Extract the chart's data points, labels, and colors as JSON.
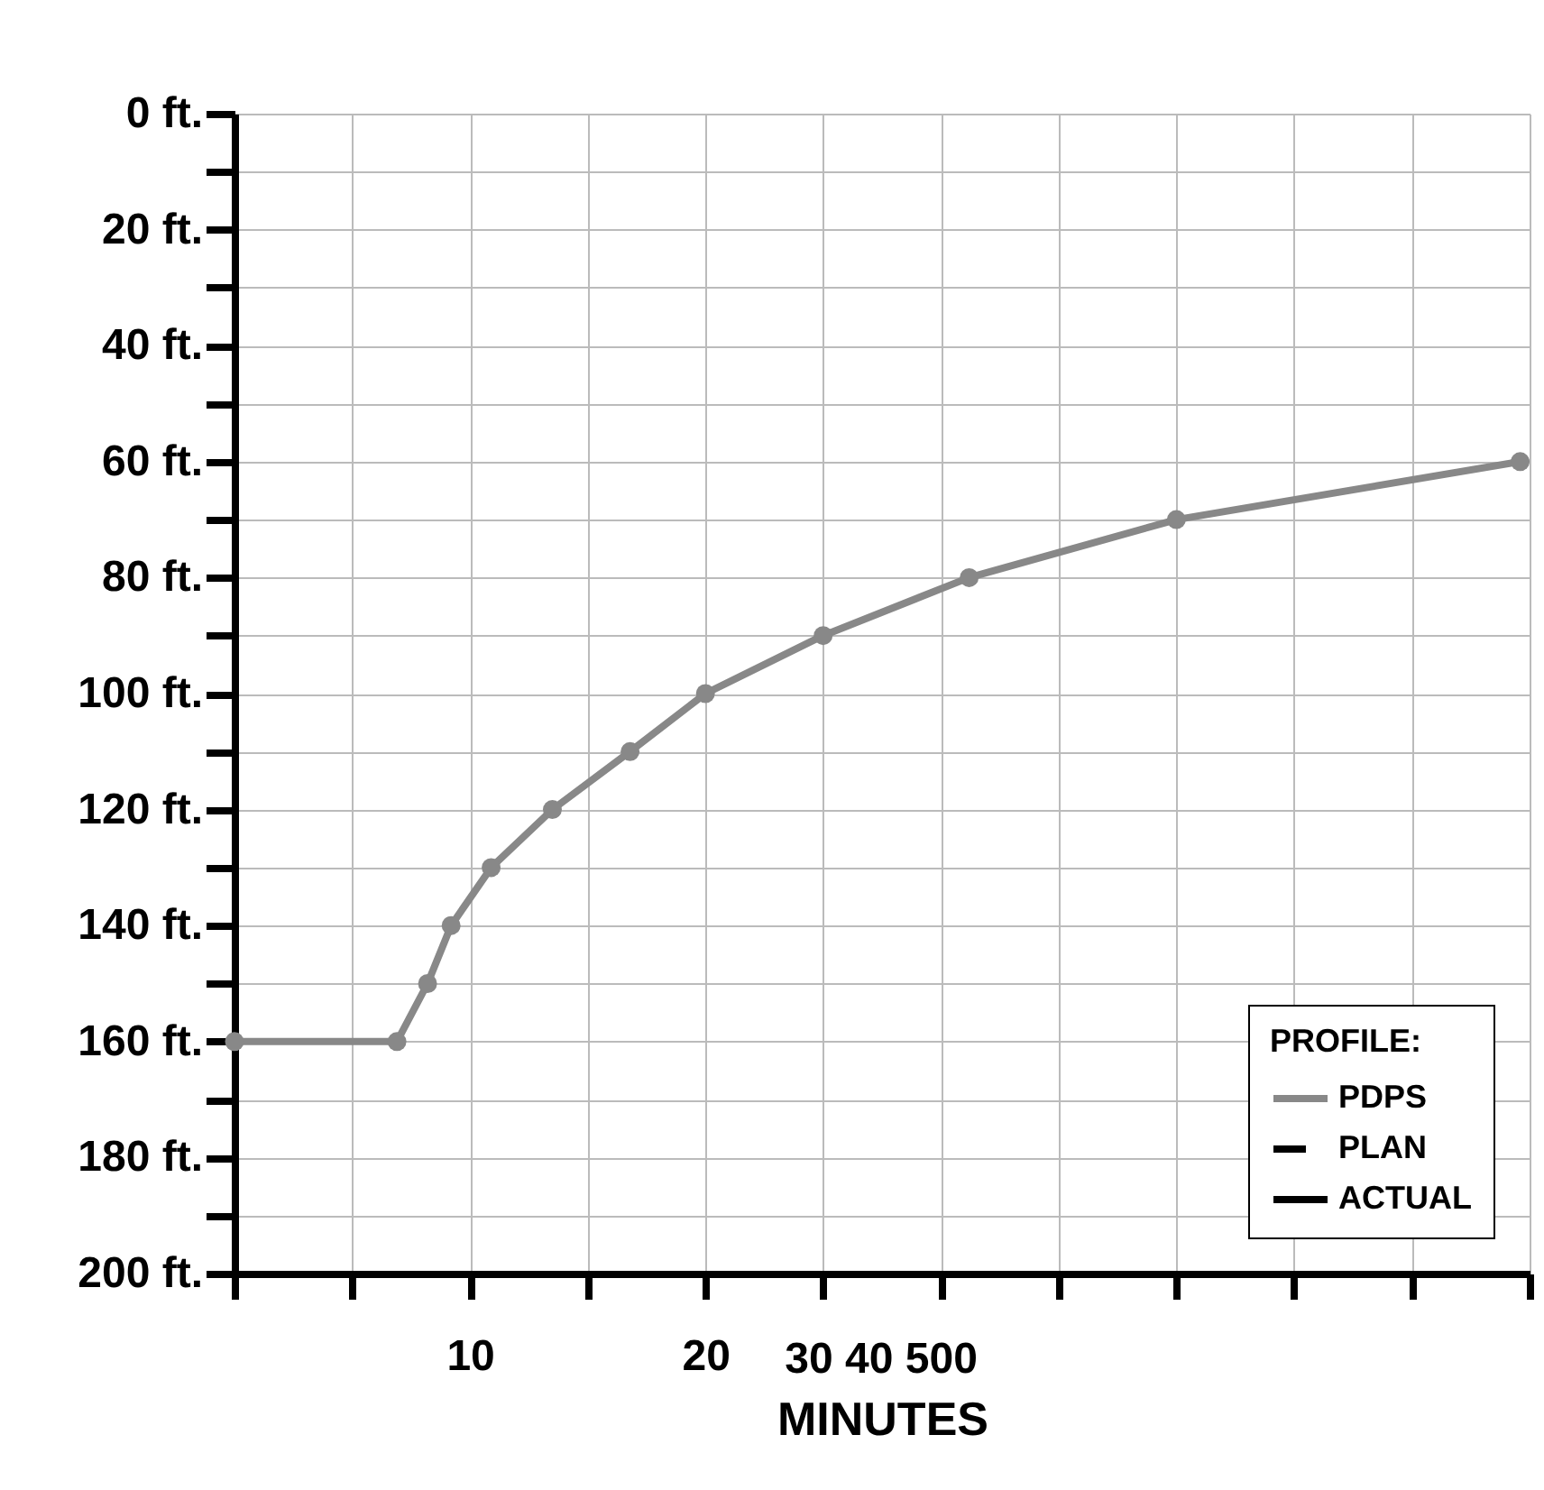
{
  "chart_data": {
    "type": "line",
    "xlabel": "MINUTES",
    "x": [
      0,
      6.9,
      8.2,
      9.2,
      10.9,
      13.5,
      16.8,
      20,
      25,
      31.2,
      40,
      54.6
    ],
    "xlim": [
      0,
      55
    ],
    "xticks": [
      {
        "value": 0,
        "label": null
      },
      {
        "value": 5,
        "label": null
      },
      {
        "value": 10,
        "label": "10"
      },
      {
        "value": 15,
        "label": null
      },
      {
        "value": 20,
        "label": "20"
      },
      {
        "value": 25,
        "label": null
      },
      {
        "value": 30,
        "label": null
      },
      {
        "value": 35,
        "label": null
      },
      {
        "value": 40,
        "label": null
      },
      {
        "value": 45,
        "label": null
      },
      {
        "value": 50,
        "label": null
      },
      {
        "value": 55,
        "label": null
      }
    ],
    "ylim": [
      200,
      0
    ],
    "yticks": [
      {
        "value": 0,
        "label": "0 ft."
      },
      {
        "value": 10,
        "label": null
      },
      {
        "value": 20,
        "label": "20 ft."
      },
      {
        "value": 30,
        "label": null
      },
      {
        "value": 40,
        "label": "40 ft."
      },
      {
        "value": 50,
        "label": null
      },
      {
        "value": 60,
        "label": "60 ft."
      },
      {
        "value": 70,
        "label": null
      },
      {
        "value": 80,
        "label": "80 ft."
      },
      {
        "value": 90,
        "label": null
      },
      {
        "value": 100,
        "label": "100 ft."
      },
      {
        "value": 110,
        "label": null
      },
      {
        "value": 120,
        "label": "120 ft."
      },
      {
        "value": 130,
        "label": null
      },
      {
        "value": 140,
        "label": "140 ft."
      },
      {
        "value": 150,
        "label": null
      },
      {
        "value": 160,
        "label": "160 ft."
      },
      {
        "value": 170,
        "label": null
      },
      {
        "value": 180,
        "label": "180 ft."
      },
      {
        "value": 190,
        "label": null
      },
      {
        "value": 200,
        "label": "200 ft."
      }
    ],
    "grid": true,
    "legend": "bottom right",
    "legend_title": "PROFILE:",
    "annotations": [
      "30 40 500"
    ],
    "series": [
      {
        "name": "PDPS",
        "color": "#888888",
        "marker": "circle",
        "line_style": "solid",
        "values": [
          160,
          160,
          150,
          140,
          130,
          120,
          110,
          100,
          90,
          80,
          70,
          60
        ]
      },
      {
        "name": "PLAN",
        "color": "#000000",
        "marker": "none",
        "line_style": "dashed",
        "values": [
          null,
          null,
          null,
          null,
          null,
          null,
          null,
          null,
          null,
          null,
          null,
          null
        ]
      },
      {
        "name": "ACTUAL",
        "color": "#000000",
        "marker": "none",
        "line_style": "solid",
        "values": [
          null,
          null,
          null,
          null,
          null,
          null,
          null,
          null,
          null,
          null,
          null,
          null
        ]
      }
    ]
  }
}
